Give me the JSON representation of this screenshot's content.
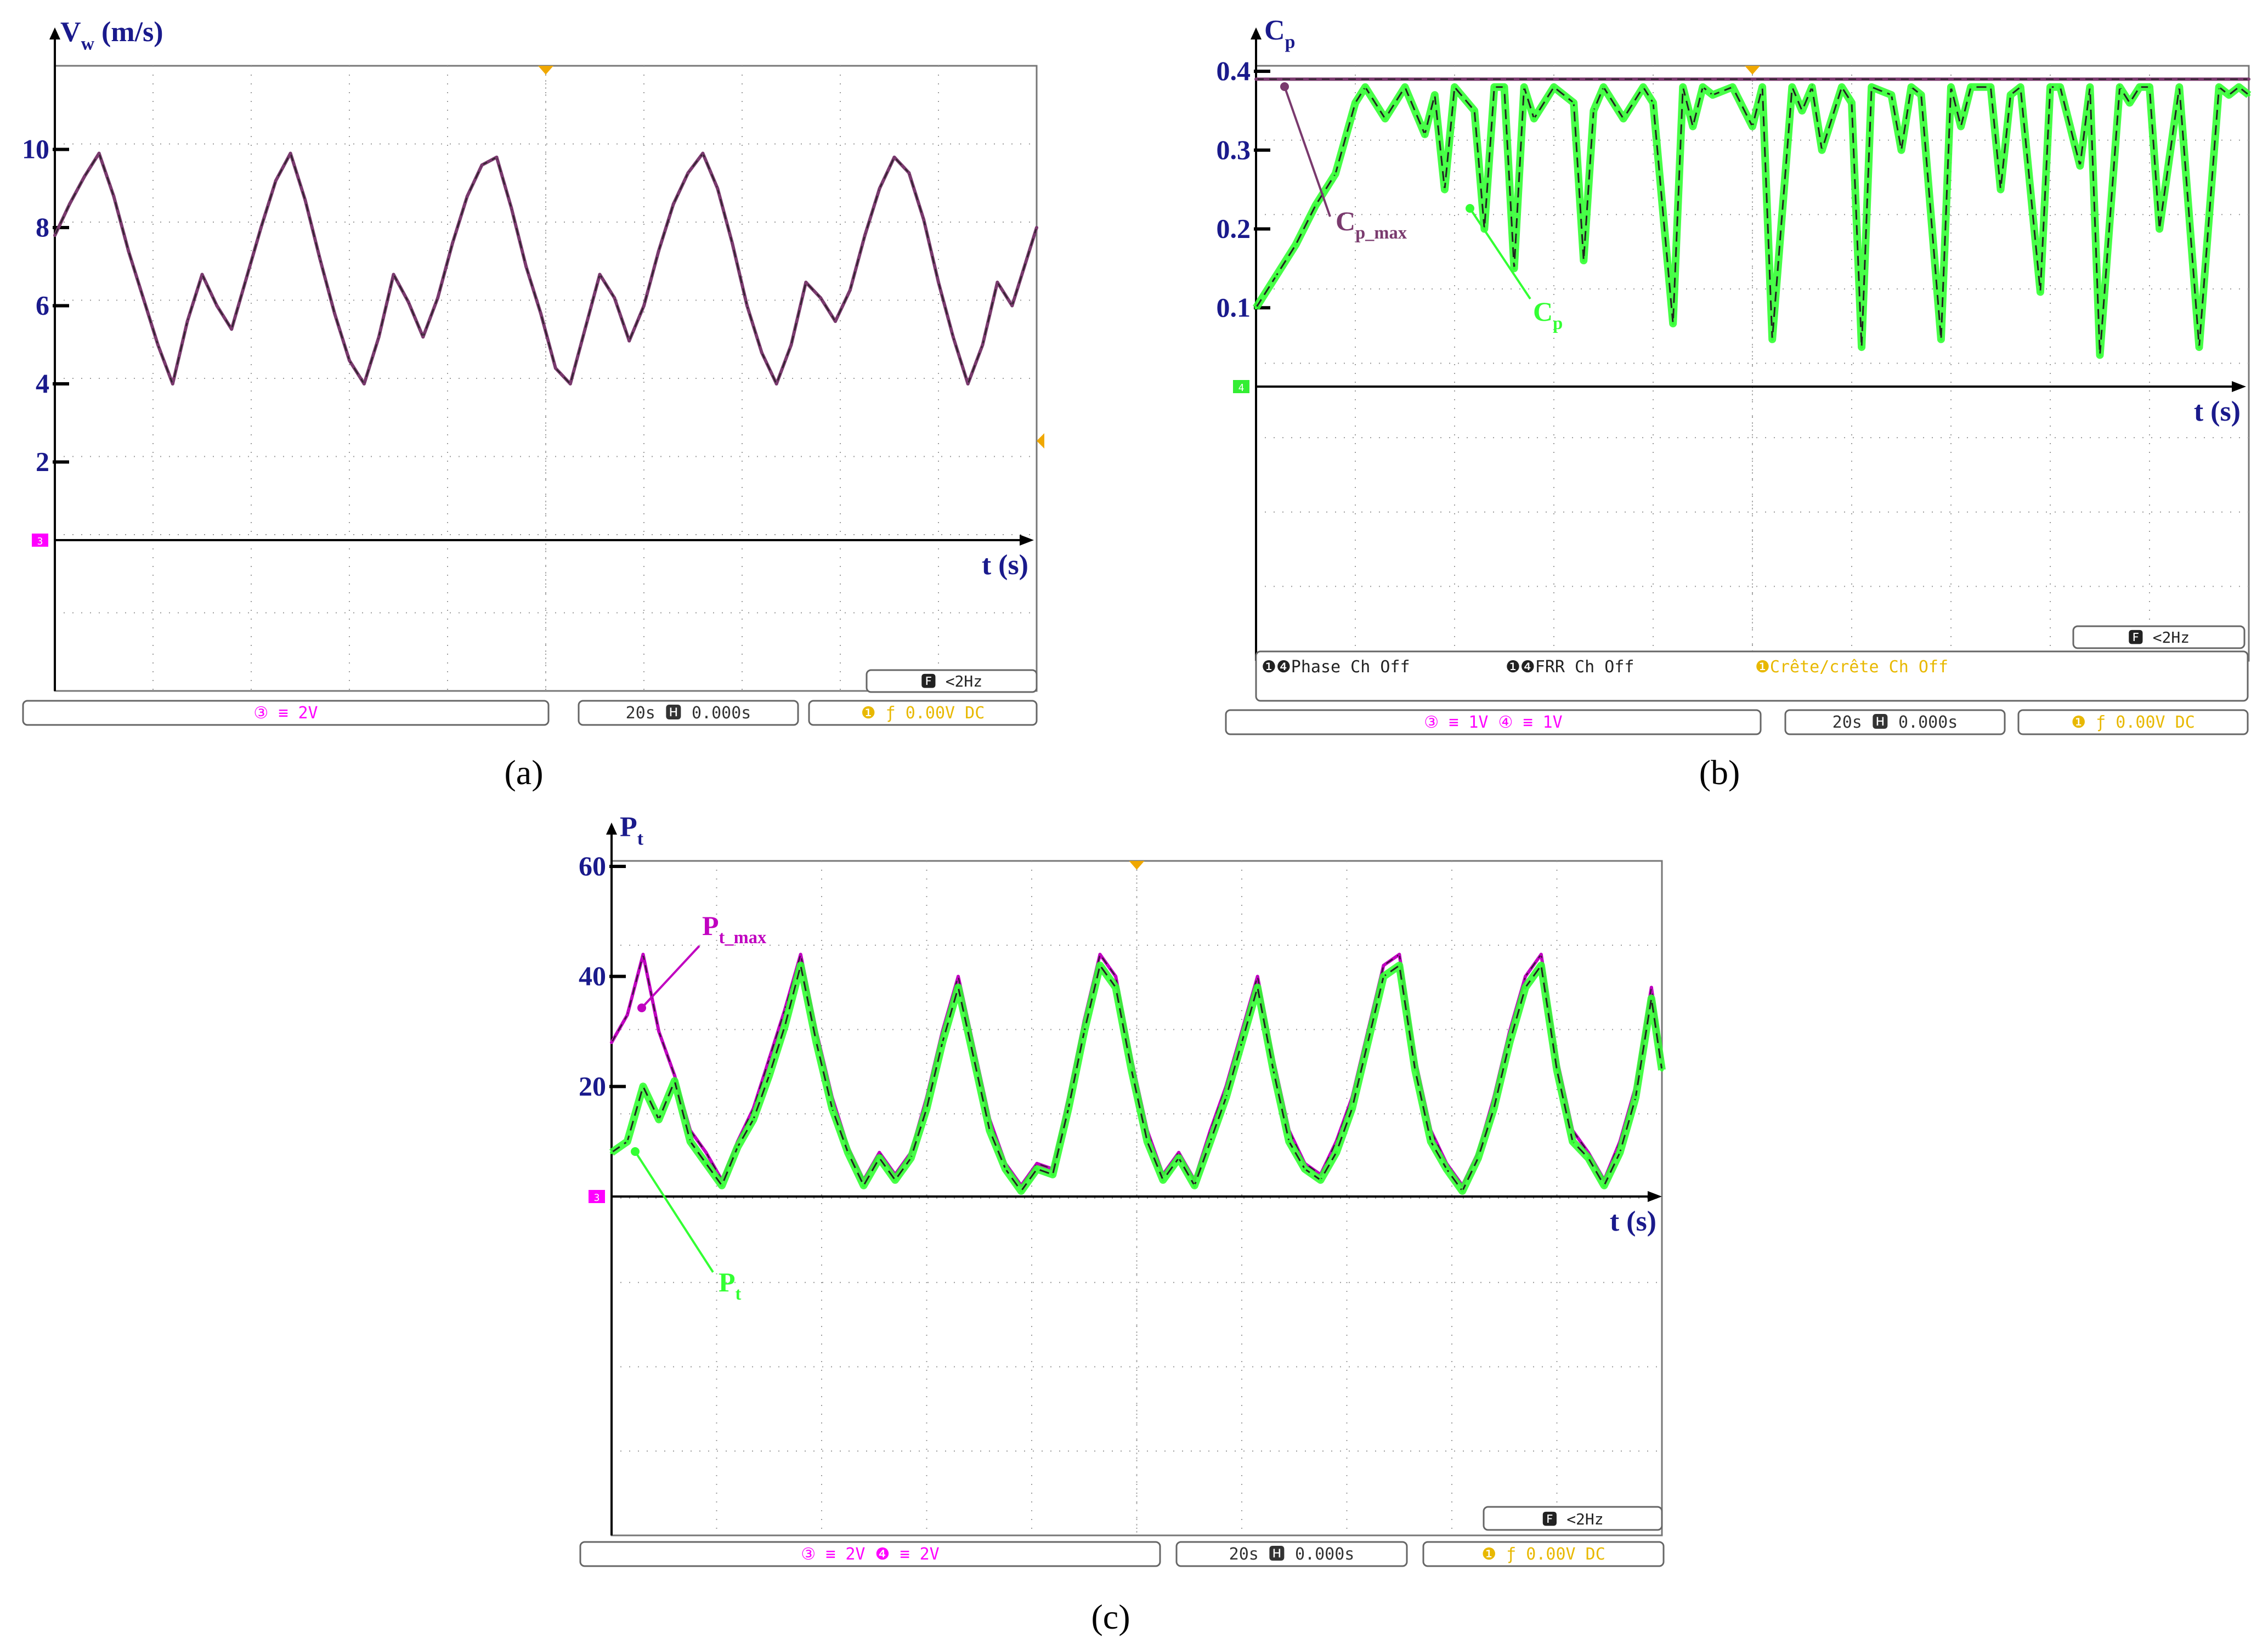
{
  "figure": {
    "colors": {
      "axis_label": "#1a1a8c",
      "trace_purple": "#7a3a6e",
      "trace_magenta": "#c000c0",
      "trace_green": "#33ff33",
      "marker_orange": "#f0a800",
      "grid": "#9a9a9a",
      "status_magenta": "#ff00ff",
      "status_green": "#33ee33",
      "status_yellow": "#e8b800"
    }
  },
  "chart_data": [
    {
      "id": "a",
      "type": "line",
      "caption": "(a)",
      "ylabel_main": "V",
      "ylabel_sub": "w",
      "ylabel_unit": " (m/s)",
      "xlabel": "t (s)",
      "yticks": [
        "10",
        "8",
        "6",
        "4",
        "2"
      ],
      "ytick_values": [
        10,
        8,
        6,
        4,
        2
      ],
      "ylim": [
        0,
        12
      ],
      "xlim": [
        0,
        200
      ],
      "channel_marker": "3",
      "trigger_marker": "4",
      "series": [
        {
          "color": "purple",
          "x": [
            0,
            3,
            6,
            9,
            12,
            15,
            18,
            21,
            24,
            27,
            30,
            33,
            36,
            39,
            42,
            45,
            48,
            51,
            54,
            57,
            60,
            63,
            66,
            69,
            72,
            75,
            78,
            81,
            84,
            87,
            90,
            93,
            96,
            99,
            102,
            105,
            108,
            111,
            114,
            117,
            120,
            123,
            126,
            129,
            132,
            135,
            138,
            141,
            144,
            147,
            150,
            153,
            156,
            159,
            162,
            165,
            168,
            171,
            174,
            177,
            180,
            183,
            186,
            189,
            192,
            195,
            198,
            200
          ],
          "y": [
            7.8,
            8.6,
            9.3,
            9.9,
            8.8,
            7.4,
            6.2,
            5.0,
            4.0,
            5.6,
            6.8,
            6.0,
            5.4,
            6.7,
            8.0,
            9.2,
            9.9,
            8.7,
            7.2,
            5.8,
            4.6,
            4.0,
            5.2,
            6.8,
            6.1,
            5.2,
            6.2,
            7.6,
            8.8,
            9.6,
            9.8,
            8.5,
            7.0,
            5.8,
            4.4,
            4.0,
            5.4,
            6.8,
            6.2,
            5.1,
            6.0,
            7.4,
            8.6,
            9.4,
            9.9,
            9.0,
            7.6,
            6.0,
            4.8,
            4.0,
            5.0,
            6.6,
            6.2,
            5.6,
            6.4,
            7.8,
            9.0,
            9.8,
            9.4,
            8.2,
            6.6,
            5.2,
            4.0,
            5.0,
            6.6,
            6.0,
            7.2,
            8.0
          ]
        }
      ],
      "status": {
        "left": "③  ≡   2V",
        "middle": "20s   🅷   0.000s",
        "right": "❶  ƒ   0.00V     DC",
        "filter": "🅵      <2Hz"
      }
    },
    {
      "id": "b",
      "type": "line",
      "caption": "(b)",
      "ylabel_main": "C",
      "ylabel_sub": "p",
      "xlabel": "t (s)",
      "yticks": [
        "0.4",
        "0.3",
        "0.2",
        "0.1"
      ],
      "ytick_values": [
        0.4,
        0.3,
        0.2,
        0.1
      ],
      "ylim": [
        0,
        0.4
      ],
      "xlim": [
        0,
        200
      ],
      "channel_marker": "4",
      "series": [
        {
          "name": "C_p_max",
          "label_main": "C",
          "label_sub": "p_max",
          "color": "purple",
          "x": [
            0,
            200
          ],
          "y": [
            0.39,
            0.39
          ]
        },
        {
          "name": "C_p",
          "label_main": "C",
          "label_sub": "p",
          "color": "green",
          "x": [
            0,
            4,
            8,
            12,
            16,
            20,
            22,
            26,
            30,
            34,
            36,
            38,
            40,
            44,
            46,
            48,
            50,
            52,
            54,
            56,
            60,
            64,
            66,
            68,
            70,
            74,
            78,
            80,
            84,
            86,
            88,
            90,
            92,
            96,
            100,
            102,
            104,
            108,
            110,
            112,
            114,
            118,
            120,
            122,
            124,
            128,
            130,
            132,
            134,
            138,
            140,
            142,
            144,
            148,
            150,
            152,
            154,
            158,
            160,
            162,
            166,
            168,
            170,
            174,
            176,
            178,
            180,
            182,
            186,
            190,
            194,
            196,
            198,
            200
          ],
          "y": [
            0.1,
            0.14,
            0.18,
            0.23,
            0.27,
            0.36,
            0.38,
            0.34,
            0.38,
            0.32,
            0.37,
            0.25,
            0.38,
            0.35,
            0.2,
            0.38,
            0.38,
            0.15,
            0.38,
            0.34,
            0.38,
            0.36,
            0.16,
            0.35,
            0.38,
            0.34,
            0.38,
            0.36,
            0.08,
            0.38,
            0.33,
            0.38,
            0.37,
            0.38,
            0.33,
            0.38,
            0.06,
            0.38,
            0.35,
            0.38,
            0.3,
            0.38,
            0.36,
            0.05,
            0.38,
            0.37,
            0.3,
            0.38,
            0.37,
            0.06,
            0.38,
            0.33,
            0.38,
            0.38,
            0.25,
            0.37,
            0.38,
            0.12,
            0.38,
            0.38,
            0.28,
            0.38,
            0.04,
            0.38,
            0.36,
            0.38,
            0.38,
            0.2,
            0.38,
            0.05,
            0.38,
            0.37,
            0.38,
            0.37
          ]
        }
      ],
      "info_lines": [
        "❶❹Phase Ch Off",
        "❶❹FRR Ch Off",
        "❶Crête/crête Ch Off"
      ],
      "status": {
        "left": "③  ≡   1V    ④  ≡   1V",
        "middle": "20s   🅷   0.000s",
        "right": "❶  ƒ   0.00V     DC",
        "filter": "🅵      <2Hz"
      }
    },
    {
      "id": "c",
      "type": "line",
      "caption": "(c)",
      "ylabel_main": "P",
      "ylabel_sub": "t",
      "xlabel": "t (s)",
      "yticks": [
        "60",
        "40",
        "20"
      ],
      "ytick_values": [
        60,
        40,
        20
      ],
      "ylim": [
        0,
        60
      ],
      "xlim": [
        0,
        200
      ],
      "channel_marker": "3",
      "series": [
        {
          "name": "P_t_max",
          "label_main": "P",
          "label_sub": "t_max",
          "color": "magenta",
          "x": [
            0,
            3,
            6,
            9,
            12,
            15,
            18,
            21,
            24,
            27,
            30,
            33,
            36,
            39,
            42,
            45,
            48,
            51,
            54,
            57,
            60,
            63,
            66,
            69,
            72,
            75,
            78,
            81,
            84,
            87,
            90,
            93,
            96,
            99,
            102,
            105,
            108,
            111,
            114,
            117,
            120,
            123,
            126,
            129,
            132,
            135,
            138,
            141,
            144,
            147,
            150,
            153,
            156,
            159,
            162,
            165,
            168,
            171,
            174,
            177,
            180,
            183,
            186,
            189,
            192,
            195,
            198,
            200
          ],
          "y": [
            28,
            33,
            44,
            30,
            22,
            12,
            8,
            3,
            10,
            16,
            25,
            34,
            44,
            30,
            18,
            9,
            3,
            8,
            4,
            8,
            18,
            30,
            40,
            27,
            14,
            6,
            2,
            6,
            5,
            18,
            32,
            44,
            40,
            25,
            12,
            4,
            8,
            3,
            12,
            20,
            30,
            40,
            25,
            12,
            6,
            4,
            10,
            18,
            30,
            42,
            44,
            25,
            12,
            6,
            2,
            8,
            18,
            30,
            40,
            44,
            25,
            12,
            8,
            3,
            10,
            20,
            38,
            25
          ]
        },
        {
          "name": "P_t",
          "label_main": "P",
          "label_sub": "t",
          "color": "green",
          "x": [
            0,
            3,
            6,
            9,
            12,
            15,
            18,
            21,
            24,
            27,
            30,
            33,
            36,
            39,
            42,
            45,
            48,
            51,
            54,
            57,
            60,
            63,
            66,
            69,
            72,
            75,
            78,
            81,
            84,
            87,
            90,
            93,
            96,
            99,
            102,
            105,
            108,
            111,
            114,
            117,
            120,
            123,
            126,
            129,
            132,
            135,
            138,
            141,
            144,
            147,
            150,
            153,
            156,
            159,
            162,
            165,
            168,
            171,
            174,
            177,
            180,
            183,
            186,
            189,
            192,
            195,
            198,
            200
          ],
          "y": [
            8,
            10,
            20,
            14,
            21,
            10,
            6,
            2,
            9,
            14,
            22,
            31,
            42,
            28,
            16,
            8,
            2,
            7,
            3,
            7,
            16,
            28,
            38,
            25,
            12,
            5,
            1,
            5,
            4,
            16,
            30,
            42,
            38,
            23,
            10,
            3,
            7,
            2,
            10,
            18,
            28,
            38,
            23,
            10,
            5,
            3,
            8,
            16,
            28,
            40,
            42,
            23,
            10,
            5,
            1,
            7,
            16,
            28,
            38,
            42,
            23,
            10,
            7,
            2,
            8,
            18,
            36,
            23
          ]
        }
      ],
      "status": {
        "left": "③  ≡   2V    ❹  ≡   2V",
        "middle": "20s   🅷   0.000s",
        "right": "❶  ƒ   0.00V     DC",
        "filter": "🅵      <2Hz"
      }
    }
  ]
}
